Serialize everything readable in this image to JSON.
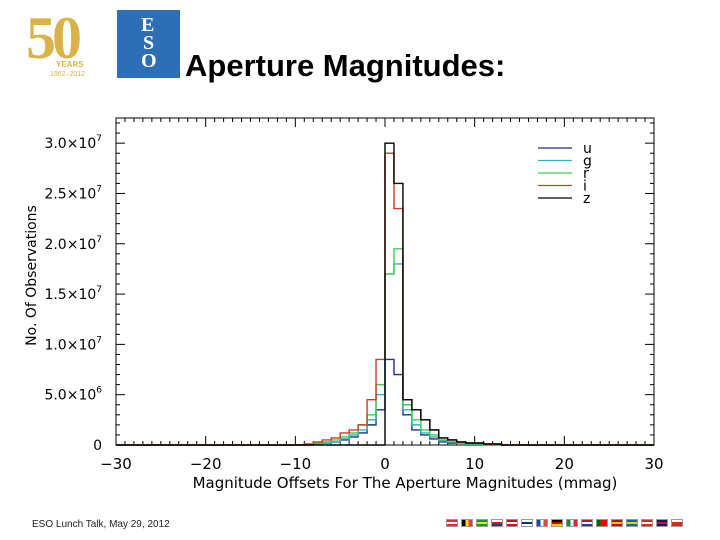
{
  "header": {
    "title": "Aperture Magnitudes:"
  },
  "logo": {
    "number": "50",
    "years": "YEARS",
    "range": "1962–2012",
    "org_letters": [
      "E",
      "S",
      "O"
    ]
  },
  "footer": {
    "text": "ESO Lunch Talk, May 29, 2012"
  },
  "flags": [
    {
      "name": "austria",
      "colors": [
        "#ed2939",
        "#ffffff",
        "#ed2939"
      ],
      "dir": "h"
    },
    {
      "name": "belgium",
      "colors": [
        "#000000",
        "#fdda24",
        "#ef3340"
      ],
      "dir": "v"
    },
    {
      "name": "brazil",
      "colors": [
        "#009c3b",
        "#ffdf00",
        "#009c3b"
      ],
      "dir": "h"
    },
    {
      "name": "czech",
      "colors": [
        "#ffffff",
        "#d7141a",
        "#11457e"
      ],
      "dir": "h"
    },
    {
      "name": "denmark",
      "colors": [
        "#c8102e",
        "#ffffff",
        "#c8102e"
      ],
      "dir": "h"
    },
    {
      "name": "finland",
      "colors": [
        "#ffffff",
        "#003580",
        "#ffffff"
      ],
      "dir": "h"
    },
    {
      "name": "france",
      "colors": [
        "#0055a4",
        "#ffffff",
        "#ef4135"
      ],
      "dir": "v"
    },
    {
      "name": "germany",
      "colors": [
        "#000000",
        "#dd0000",
        "#ffce00"
      ],
      "dir": "h"
    },
    {
      "name": "italy",
      "colors": [
        "#009246",
        "#ffffff",
        "#ce2b37"
      ],
      "dir": "v"
    },
    {
      "name": "netherlands",
      "colors": [
        "#ae1c28",
        "#ffffff",
        "#21468b"
      ],
      "dir": "h"
    },
    {
      "name": "portugal",
      "colors": [
        "#006600",
        "#ff0000",
        "#ff0000"
      ],
      "dir": "v"
    },
    {
      "name": "spain",
      "colors": [
        "#aa151b",
        "#f1bf00",
        "#aa151b"
      ],
      "dir": "h"
    },
    {
      "name": "sweden",
      "colors": [
        "#006aa7",
        "#fecc00",
        "#006aa7"
      ],
      "dir": "h"
    },
    {
      "name": "switzerland",
      "colors": [
        "#d52b1e",
        "#ffffff",
        "#d52b1e"
      ],
      "dir": "h"
    },
    {
      "name": "uk",
      "colors": [
        "#012169",
        "#c8102e",
        "#012169"
      ],
      "dir": "h"
    },
    {
      "name": "chile",
      "colors": [
        "#ffffff",
        "#d52b1e",
        "#d52b1e"
      ],
      "dir": "h"
    }
  ],
  "chart_data": {
    "type": "histogram",
    "xlabel": "Magnitude Offsets For The Aperture Magnitudes (mmag)",
    "ylabel": "No. Of Observations",
    "xlim": [
      -30,
      30
    ],
    "ylim": [
      0,
      32500000
    ],
    "x_ticks": [
      -30,
      -20,
      -10,
      0,
      10,
      20,
      30
    ],
    "x_tick_labels": [
      "−30",
      "−20",
      "−10",
      "0",
      "10",
      "20",
      "30"
    ],
    "y_ticks": [
      0,
      5000000,
      10000000,
      15000000,
      20000000,
      25000000,
      30000000
    ],
    "y_tick_labels": [
      {
        "base": "0",
        "exp": ""
      },
      {
        "base": "5.0×10",
        "exp": "6"
      },
      {
        "base": "1.0×10",
        "exp": "7"
      },
      {
        "base": "1.5×10",
        "exp": "7"
      },
      {
        "base": "2.0×10",
        "exp": "7"
      },
      {
        "base": "2.5×10",
        "exp": "7"
      },
      {
        "base": "3.0×10",
        "exp": "7"
      }
    ],
    "bin_edges": [
      -30,
      -29,
      -28,
      -27,
      -26,
      -25,
      -24,
      -23,
      -22,
      -21,
      -20,
      -19,
      -18,
      -17,
      -16,
      -15,
      -14,
      -13,
      -12,
      -11,
      -10,
      -9,
      -8,
      -7,
      -6,
      -5,
      -4,
      -3,
      -2,
      -1,
      0,
      1,
      2,
      3,
      4,
      5,
      6,
      7,
      8,
      9,
      10,
      11,
      12,
      13,
      14,
      15,
      16,
      17,
      18,
      19,
      20,
      21,
      22,
      23,
      24,
      25,
      26,
      27,
      28,
      29,
      30
    ],
    "legend_position": "top-right",
    "series": [
      {
        "name": "u",
        "color": "#1f2f8f",
        "values": [
          0,
          0,
          0,
          0,
          0,
          0,
          0,
          0,
          0,
          0,
          0,
          0,
          0,
          0,
          0,
          0,
          0,
          0,
          0,
          0,
          0,
          0,
          100000,
          200000,
          300000,
          500000,
          800000,
          1200000,
          2000000,
          3500000,
          8500000,
          7000000,
          3000000,
          1500000,
          1000000,
          600000,
          300000,
          200000,
          200000,
          100000,
          100000,
          0,
          0,
          0,
          0,
          0,
          0,
          0,
          0,
          0,
          0,
          0,
          0,
          0,
          0,
          0,
          0,
          0,
          0,
          0
        ]
      },
      {
        "name": "g",
        "color": "#2bb3c8",
        "values": [
          0,
          0,
          0,
          0,
          0,
          0,
          0,
          0,
          0,
          0,
          0,
          0,
          0,
          0,
          0,
          0,
          0,
          0,
          0,
          0,
          0,
          0,
          100000,
          200000,
          300000,
          600000,
          1000000,
          1500000,
          2500000,
          5000000,
          17000000,
          18000000,
          3500000,
          2000000,
          1200000,
          800000,
          400000,
          300000,
          200000,
          100000,
          100000,
          0,
          0,
          0,
          0,
          0,
          0,
          0,
          0,
          0,
          0,
          0,
          0,
          0,
          0,
          0,
          0,
          0,
          0,
          0
        ]
      },
      {
        "name": "r",
        "color": "#3ccf4e",
        "values": [
          0,
          0,
          0,
          0,
          0,
          0,
          0,
          0,
          0,
          0,
          0,
          0,
          0,
          0,
          0,
          0,
          0,
          0,
          0,
          0,
          0,
          0,
          200000,
          300000,
          500000,
          800000,
          1200000,
          2000000,
          3000000,
          6000000,
          17000000,
          19500000,
          4000000,
          2500000,
          1500000,
          1000000,
          500000,
          300000,
          200000,
          100000,
          100000,
          0,
          0,
          0,
          0,
          0,
          0,
          0,
          0,
          0,
          0,
          0,
          0,
          0,
          0,
          0,
          0,
          0,
          0,
          0
        ]
      },
      {
        "name": "i",
        "color": "#d23a2a",
        "values": [
          0,
          0,
          0,
          0,
          0,
          0,
          0,
          0,
          0,
          0,
          0,
          0,
          0,
          0,
          0,
          0,
          0,
          0,
          0,
          0,
          0,
          100000,
          300000,
          500000,
          700000,
          1200000,
          1500000,
          2000000,
          4500000,
          8500000,
          29000000,
          23500000,
          4500000,
          3500000,
          2500000,
          1500000,
          700000,
          500000,
          300000,
          200000,
          200000,
          100000,
          100000,
          0,
          0,
          0,
          0,
          0,
          0,
          0,
          0,
          0,
          0,
          0,
          0,
          0,
          0,
          0,
          0,
          0
        ]
      },
      {
        "name": "z",
        "color": "#000000",
        "values": [
          0,
          0,
          0,
          0,
          0,
          0,
          0,
          0,
          0,
          0,
          0,
          0,
          0,
          0,
          0,
          0,
          0,
          0,
          0,
          0,
          0,
          0,
          0,
          0,
          0,
          0,
          0,
          0,
          0,
          0,
          30000000,
          26000000,
          4500000,
          3500000,
          2500000,
          1500000,
          700000,
          500000,
          300000,
          200000,
          200000,
          100000,
          100000,
          0,
          0,
          0,
          0,
          0,
          0,
          0,
          0,
          0,
          0,
          0,
          0,
          0,
          0,
          0,
          0,
          0
        ]
      }
    ]
  }
}
